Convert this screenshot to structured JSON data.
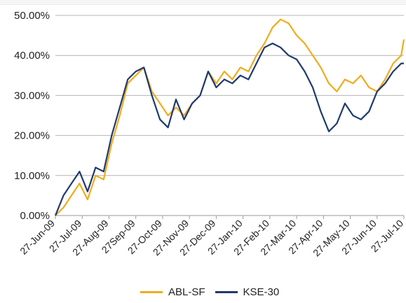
{
  "chart_data": {
    "type": "line",
    "title": "",
    "xlabel": "",
    "ylabel": "",
    "ylim": [
      0,
      50
    ],
    "y_tick_labels": [
      "0.00%",
      "10.00%",
      "20.00%",
      "30.00%",
      "40.00%",
      "50.00%"
    ],
    "x_tick_labels": [
      "27-Jun-09",
      "27-Jul-09",
      "27-Aug-09",
      "27Sep-09",
      "27-Oct-09",
      "27-Nov-09",
      "27-Dec-09",
      "27-Jan-10",
      "27-Feb-10",
      "27-Mar-10",
      "27-Apr-10",
      "27-May-10",
      "27-Jun-10",
      "27-Jul-10"
    ],
    "grid": "horizontal",
    "legend": "bottom",
    "series": [
      {
        "name": "ABL-SF",
        "color": "#f2ab1c",
        "x": [
          0,
          0.3,
          0.6,
          0.9,
          1.2,
          1.5,
          1.8,
          2.1,
          2.4,
          2.7,
          3.0,
          3.3,
          3.6,
          3.9,
          4.2,
          4.5,
          4.8,
          5.1,
          5.4,
          5.7,
          6.0,
          6.3,
          6.6,
          6.9,
          7.2,
          7.5,
          7.8,
          8.1,
          8.4,
          8.7,
          9.0,
          9.3,
          9.6,
          9.9,
          10.2,
          10.5,
          10.8,
          11.1,
          11.4,
          11.7,
          12.0,
          12.3,
          12.6,
          12.9,
          13.0
        ],
        "values": [
          0,
          2,
          5,
          8,
          4,
          10,
          9,
          18,
          25,
          33,
          35,
          37,
          31,
          28,
          25,
          27,
          25,
          28,
          30,
          36,
          33,
          36,
          34,
          37,
          36,
          40,
          43,
          47,
          49,
          48,
          45,
          43,
          40,
          37,
          33,
          31,
          34,
          33,
          35,
          32,
          31,
          34,
          38,
          40,
          44
        ]
      },
      {
        "name": "KSE-30",
        "color": "#1f3a6e",
        "x": [
          0,
          0.3,
          0.6,
          0.9,
          1.2,
          1.5,
          1.8,
          2.1,
          2.4,
          2.7,
          3.0,
          3.3,
          3.6,
          3.9,
          4.2,
          4.5,
          4.8,
          5.1,
          5.4,
          5.7,
          6.0,
          6.3,
          6.6,
          6.9,
          7.2,
          7.5,
          7.8,
          8.1,
          8.4,
          8.7,
          9.0,
          9.3,
          9.6,
          9.9,
          10.2,
          10.5,
          10.8,
          11.1,
          11.4,
          11.7,
          12.0,
          12.3,
          12.6,
          12.9,
          13.0
        ],
        "values": [
          0,
          5,
          8,
          11,
          6,
          12,
          11,
          20,
          27,
          34,
          36,
          37,
          30,
          24,
          22,
          29,
          24,
          28,
          30,
          36,
          32,
          34,
          33,
          35,
          34,
          38,
          42,
          43,
          42,
          40,
          39,
          36,
          32,
          26,
          21,
          23,
          28,
          25,
          24,
          26,
          31,
          33,
          36,
          38,
          38
        ]
      }
    ]
  }
}
